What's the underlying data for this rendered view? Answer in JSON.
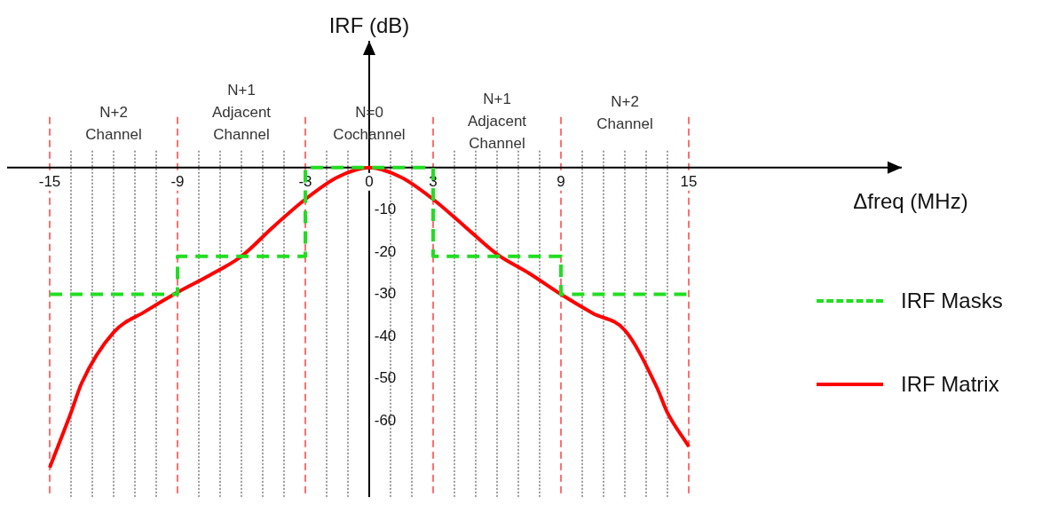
{
  "chart_data": {
    "type": "line",
    "ylabel": "IRF (dB)",
    "xlabel": "Δfreq (MHz)",
    "xlim": [
      -17,
      25
    ],
    "ylim": [
      -78,
      30
    ],
    "xticks": [
      -15,
      {
        "value": -14,
        "label": null
      },
      {
        "value": -13,
        "label": null
      },
      {
        "value": -12,
        "label": null
      },
      {
        "value": -11,
        "label": null
      },
      {
        "value": -10,
        "label": null
      },
      -9,
      {
        "value": -8,
        "label": null
      },
      {
        "value": -7,
        "label": null
      },
      {
        "value": -6,
        "label": null
      },
      {
        "value": -5,
        "label": null
      },
      {
        "value": -4,
        "label": null
      },
      -3,
      {
        "value": -2,
        "label": null
      },
      {
        "value": -1,
        "label": null
      },
      0,
      {
        "value": 1,
        "label": null
      },
      {
        "value": 2,
        "label": null
      },
      3,
      {
        "value": 4,
        "label": null
      },
      {
        "value": 5,
        "label": null
      },
      {
        "value": 6,
        "label": null
      },
      {
        "value": 7,
        "label": null
      },
      {
        "value": 8,
        "label": null
      },
      9,
      {
        "value": 10,
        "label": null
      },
      {
        "value": 11,
        "label": null
      },
      {
        "value": 12,
        "label": null
      },
      {
        "value": 13,
        "label": null
      },
      {
        "value": 14,
        "label": null
      },
      15
    ],
    "yticks": [
      -60,
      -50,
      -40,
      -30,
      -20,
      -10
    ],
    "grid": "x",
    "legend": "right",
    "marker": "none",
    "series": [
      {
        "name": "IRF Masks",
        "type": "line",
        "color": "#22dd22",
        "line_style": "dashed",
        "x": [
          -15,
          -9,
          -9,
          -3,
          -3,
          3,
          3,
          9,
          9,
          15
        ],
        "values": [
          -30,
          -30,
          -21,
          -21,
          0,
          0,
          -21,
          -21,
          -30,
          -30
        ]
      },
      {
        "name": "IRF Matrix",
        "type": "line",
        "color": "#ff0000",
        "line_style": "solid",
        "x": [
          -15,
          -14,
          -13.5,
          -12,
          -10.5,
          -9,
          -7.5,
          -6,
          -4.5,
          -3,
          -1.5,
          0,
          1.5,
          3,
          4.5,
          6,
          7.5,
          9,
          10.5,
          12,
          13.5,
          14,
          15
        ],
        "values": [
          -71,
          -58,
          -51,
          -39,
          -34,
          -29.5,
          -25.5,
          -21,
          -14,
          -7.5,
          -2.3,
          0,
          -2.3,
          -7.5,
          -14,
          -20.5,
          -25,
          -30,
          -34.5,
          -38.5,
          -52,
          -58,
          -66
        ]
      }
    ],
    "annotations": [
      "N+2\nChannel",
      "N+1\nAdjacent\nChannel",
      "N=0\nCochannel",
      "N+1\nAdjacent\nChannel",
      "N+2\nChannel"
    ]
  }
}
